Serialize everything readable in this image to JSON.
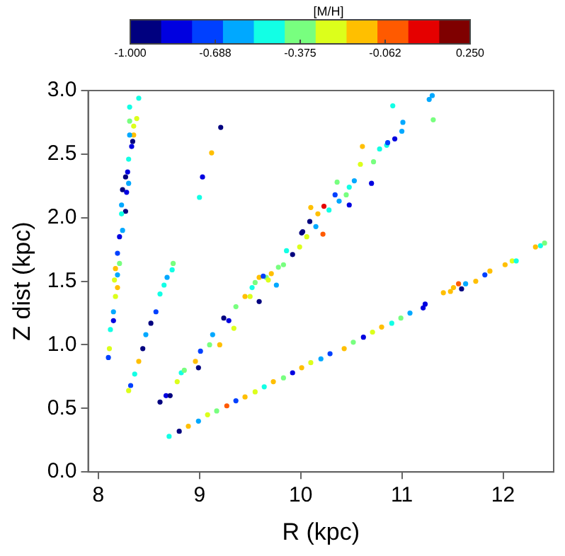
{
  "chart_data": {
    "type": "scatter",
    "xlabel": "R (kpc)",
    "ylabel": "Z dist (kpc)",
    "clabel": "[M/H]",
    "clim": [
      -1.0,
      0.25
    ],
    "cticks": [
      {
        "value": -1.0,
        "label": "-1.000"
      },
      {
        "value": -0.6875,
        "label": "-0.688"
      },
      {
        "value": -0.375,
        "label": "-0.375"
      },
      {
        "value": -0.0625,
        "label": "-0.062"
      },
      {
        "value": 0.25,
        "label": "0.250"
      }
    ],
    "xlim": [
      7.9,
      12.5
    ],
    "xticks": [
      8,
      9,
      10,
      11,
      12
    ],
    "ylim": [
      0,
      3.0
    ],
    "yticks": [
      {
        "value": 0,
        "label": "0.0"
      },
      0.5,
      {
        "value": 1,
        "label": "1.0"
      },
      1.5,
      {
        "value": 2,
        "label": "2.0"
      },
      2.5,
      {
        "value": 3,
        "label": "3.0"
      }
    ],
    "grid": false,
    "legend": false,
    "marker": "circle",
    "series": [
      {
        "x": [
          8.4,
          8.31,
          8.31,
          8.38,
          8.35,
          8.35,
          8.31,
          8.34,
          8.33,
          8.3,
          8.29,
          8.27,
          8.3,
          8.24,
          8.28,
          8.23,
          8.27,
          8.23,
          8.24,
          8.21,
          8.19,
          8.21,
          8.17,
          8.19,
          8.16,
          8.19,
          8.17,
          8.15,
          8.15,
          8.12,
          8.11,
          8.1,
          8.3,
          8.32,
          8.36,
          8.4,
          8.44,
          8.47,
          8.52,
          8.57,
          8.61,
          8.65,
          8.68,
          8.73,
          8.74,
          8.61,
          8.67,
          8.71,
          8.78,
          8.82,
          8.85,
          8.99,
          8.96,
          9.01,
          9.1,
          9.13,
          9.2,
          9.24,
          9.29,
          9.34,
          9.36,
          9.45,
          9.5,
          9.59,
          9.52,
          9.59,
          9.66,
          9.76,
          9.55,
          9.63,
          9.68,
          9.71,
          9.78,
          9.83,
          9.86,
          9.92,
          10.01,
          10.06,
          10.1,
          10.15,
          10.22,
          10.23,
          10.28,
          10.34,
          10.36,
          10.38,
          10.45,
          10.48,
          10.48,
          10.53,
          10.59,
          10.61,
          10.7,
          10.72,
          10.78,
          10.85,
          10.86,
          10.93,
          11.0,
          11.01,
          10.91,
          11.27,
          11.3,
          11.31,
          9.99,
          10.02,
          10.09,
          10.17,
          9.21,
          9.12,
          9.03,
          9.0,
          8.7,
          8.8,
          8.89,
          8.99,
          9.08,
          9.17,
          9.27,
          9.36,
          9.45,
          9.55,
          9.64,
          9.73,
          9.83,
          9.92,
          10.01,
          10.1,
          10.2,
          10.29,
          10.43,
          10.52,
          10.62,
          10.71,
          10.8,
          10.9,
          10.99,
          11.08,
          11.21,
          11.23,
          11.41,
          11.48,
          11.51,
          11.56,
          11.59,
          11.63,
          11.73,
          11.82,
          11.87,
          12.02,
          12.09,
          12.13,
          12.32,
          12.37,
          12.41
        ],
        "values": [
          2.94,
          2.87,
          2.76,
          2.78,
          2.72,
          2.65,
          2.65,
          2.6,
          2.56,
          2.46,
          2.36,
          2.32,
          2.27,
          2.22,
          2.2,
          2.1,
          2.05,
          2.03,
          1.9,
          1.85,
          1.72,
          1.64,
          1.6,
          1.55,
          1.51,
          1.45,
          1.38,
          1.26,
          1.19,
          1.12,
          0.97,
          0.9,
          0.64,
          0.68,
          0.77,
          0.87,
          0.97,
          1.08,
          1.17,
          1.26,
          1.4,
          1.47,
          1.53,
          1.59,
          1.64,
          0.55,
          0.6,
          0.6,
          0.71,
          0.78,
          0.8,
          0.82,
          0.87,
          0.95,
          1.0,
          1.08,
          1.0,
          1.21,
          1.19,
          1.13,
          1.3,
          1.38,
          1.38,
          1.34,
          1.45,
          1.53,
          1.53,
          1.47,
          1.49,
          1.54,
          1.51,
          1.56,
          1.61,
          1.63,
          1.74,
          1.71,
          1.88,
          1.85,
          2.08,
          1.93,
          1.87,
          2.09,
          2.06,
          2.18,
          2.28,
          2.13,
          2.18,
          2.24,
          2.1,
          2.29,
          2.42,
          2.56,
          2.27,
          2.44,
          2.54,
          2.57,
          2.59,
          2.62,
          2.68,
          2.75,
          2.88,
          2.93,
          2.96,
          2.77,
          1.77,
          1.89,
          1.97,
          2.03,
          2.71,
          2.51,
          2.32,
          2.16,
          0.28,
          0.32,
          0.36,
          0.4,
          0.45,
          0.48,
          0.52,
          0.56,
          0.59,
          0.63,
          0.67,
          0.71,
          0.74,
          0.78,
          0.82,
          0.86,
          0.89,
          0.93,
          0.97,
          1.02,
          1.06,
          1.1,
          1.14,
          1.17,
          1.21,
          1.25,
          1.29,
          1.32,
          1.41,
          1.42,
          1.45,
          1.48,
          1.44,
          1.48,
          1.5,
          1.55,
          1.58,
          1.63,
          1.66,
          1.66,
          1.77,
          1.78,
          1.8
        ],
        "cvalues": [
          -0.48,
          -0.48,
          -0.38,
          -0.25,
          -0.25,
          -0.12,
          -0.58,
          -0.95,
          -0.8,
          -0.48,
          -0.8,
          -0.95,
          -0.58,
          -0.95,
          -0.8,
          -0.58,
          -0.95,
          -0.48,
          -0.58,
          -0.8,
          -0.7,
          -0.38,
          -0.12,
          -0.58,
          -0.25,
          -0.12,
          -0.25,
          -0.58,
          -0.8,
          -0.48,
          -0.25,
          -0.7,
          -0.25,
          -0.7,
          -0.48,
          -0.12,
          -0.95,
          -0.58,
          -0.95,
          -0.7,
          -0.48,
          -0.48,
          -0.58,
          -0.48,
          -0.38,
          -0.95,
          -0.8,
          -0.95,
          -0.25,
          -0.48,
          -0.38,
          -0.95,
          -0.12,
          -0.7,
          -0.38,
          -0.58,
          -0.12,
          -0.95,
          -0.8,
          -0.25,
          -0.38,
          -0.12,
          -0.25,
          -0.95,
          -0.48,
          -0.12,
          -0.38,
          -0.58,
          -0.38,
          -0.7,
          -0.25,
          -0.12,
          -0.38,
          -0.38,
          -0.48,
          -0.95,
          -0.95,
          -0.25,
          -0.12,
          -0.58,
          0.0,
          0.1,
          -0.48,
          -0.7,
          -0.38,
          -0.58,
          -0.38,
          -0.48,
          -0.8,
          -0.58,
          -0.25,
          -0.12,
          -0.8,
          -0.38,
          -0.48,
          -0.48,
          -0.7,
          -0.8,
          -0.58,
          -0.58,
          -0.48,
          -0.58,
          -0.58,
          -0.38,
          -0.25,
          -0.95,
          -0.95,
          -0.12,
          -0.95,
          -0.12,
          -0.8,
          -0.48,
          -0.48,
          -0.95,
          -0.12,
          -0.58,
          -0.25,
          -0.38,
          0.0,
          -0.7,
          -0.12,
          -0.25,
          -0.48,
          -0.12,
          -0.38,
          -0.8,
          -0.12,
          -0.25,
          -0.58,
          -0.7,
          -0.12,
          -0.38,
          -0.8,
          -0.25,
          -0.12,
          -0.48,
          -0.38,
          -0.58,
          -0.8,
          -0.8,
          -0.12,
          -0.12,
          -0.12,
          0.0,
          -0.95,
          -0.58,
          -0.12,
          -0.7,
          -0.12,
          -0.12,
          -0.25,
          -0.48,
          -0.12,
          -0.48,
          -0.38
        ]
      }
    ]
  }
}
